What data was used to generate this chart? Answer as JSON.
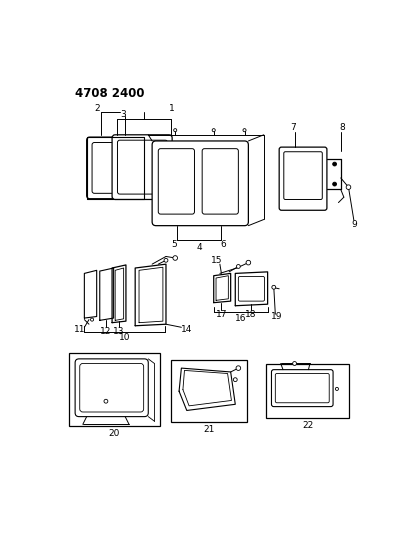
{
  "title": "4708 2400",
  "bg_color": "#ffffff",
  "line_color": "#000000",
  "font_size_title": 8,
  "font_size_label": 6.5,
  "fig_width": 4.08,
  "fig_height": 5.33,
  "dpi": 100
}
